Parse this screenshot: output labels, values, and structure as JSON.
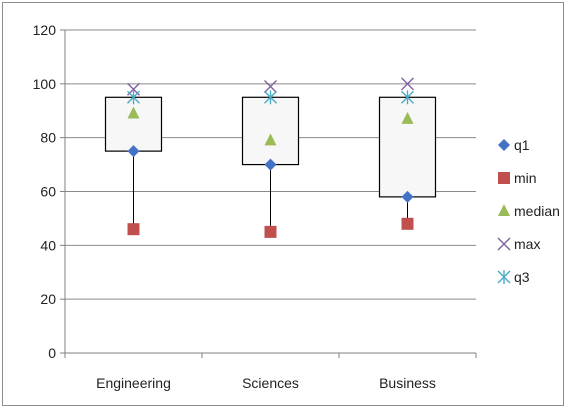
{
  "chart_data": {
    "type": "scatter",
    "categories": [
      "Engineering",
      "Sciences",
      "Business"
    ],
    "ylim": [
      0,
      120
    ],
    "yticks": [
      "0",
      "20",
      "40",
      "60",
      "80",
      "100",
      "120"
    ],
    "grid": true,
    "legend_position": "right",
    "series": [
      {
        "name": "q1",
        "marker": "diamond",
        "color": "#4472c4",
        "values": [
          75,
          70,
          58
        ]
      },
      {
        "name": "min",
        "marker": "square",
        "color": "#c0504d",
        "values": [
          46,
          45,
          48
        ]
      },
      {
        "name": "median",
        "marker": "triangle",
        "color": "#9bbb59",
        "values": [
          89,
          79,
          87
        ]
      },
      {
        "name": "max",
        "marker": "x",
        "color": "#8064a2",
        "values": [
          98,
          99,
          100
        ]
      },
      {
        "name": "q3",
        "marker": "asterisk",
        "color": "#4bacc6",
        "values": [
          95,
          95,
          95
        ]
      }
    ]
  }
}
